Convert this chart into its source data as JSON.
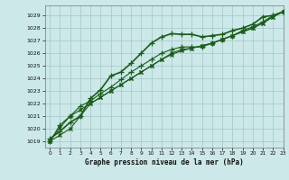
{
  "title": "Graphe pression niveau de la mer (hPa)",
  "bg_color": "#cce8e8",
  "grid_color": "#aacccc",
  "line_color": "#1a5c1a",
  "xlim": [
    -0.5,
    23
  ],
  "ylim": [
    1018.5,
    1029.8
  ],
  "yticks": [
    1019,
    1020,
    1021,
    1022,
    1023,
    1024,
    1025,
    1026,
    1027,
    1028,
    1029
  ],
  "xticks": [
    0,
    1,
    2,
    3,
    4,
    5,
    6,
    7,
    8,
    9,
    10,
    11,
    12,
    13,
    14,
    15,
    16,
    17,
    18,
    19,
    20,
    21,
    22,
    23
  ],
  "series": [
    [
      1019.2,
      1019.8,
      1020.5,
      1021.0,
      1022.4,
      1023.1,
      1024.2,
      1024.5,
      1025.2,
      1026.0,
      1026.8,
      1027.3,
      1027.55,
      1027.5,
      1027.5,
      1027.3,
      1027.4,
      1027.5,
      1027.8,
      1028.0,
      1028.3,
      1028.9,
      1029.0,
      1029.3
    ],
    [
      1019.0,
      1020.3,
      1021.0,
      1021.8,
      1022.2,
      1022.8,
      1023.3,
      1023.9,
      1024.5,
      1025.0,
      1025.5,
      1026.0,
      1026.3,
      1026.5,
      1026.5,
      1026.5,
      1026.8,
      1027.1,
      1027.4,
      1027.8,
      1028.1,
      1028.5,
      1029.0,
      1029.3
    ],
    [
      1019.0,
      1020.1,
      1021.0,
      1021.5,
      1022.0,
      1022.5,
      1023.0,
      1023.5,
      1024.0,
      1024.5,
      1025.0,
      1025.5,
      1026.0,
      1026.3,
      1026.4,
      1026.6,
      1026.8,
      1027.1,
      1027.4,
      1027.7,
      1028.0,
      1028.4,
      1028.9,
      1029.3
    ],
    [
      1019.0,
      1019.5,
      1020.0,
      1021.0,
      1022.0,
      1022.5,
      1023.0,
      1023.5,
      1024.0,
      1024.5,
      1025.0,
      1025.5,
      1025.9,
      1026.2,
      1026.4,
      1026.6,
      1026.8,
      1027.1,
      1027.4,
      1027.7,
      1028.0,
      1028.4,
      1028.9,
      1029.3
    ]
  ]
}
